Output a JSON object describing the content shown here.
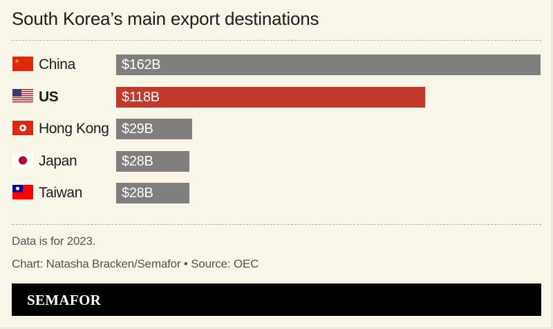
{
  "title": "South Korea’s main export destinations",
  "note": "Data is for 2023.",
  "credit": "Chart: Natasha Bracken/Semafor • Source: OEC",
  "brand": "SEMAFOR",
  "colors": {
    "default_bar": "#7f7f7f",
    "highlight_bar": "#c0392b",
    "background": "#f8f5e9"
  },
  "chart_data": {
    "type": "bar",
    "orientation": "horizontal",
    "title": "South Korea’s main export destinations",
    "categories": [
      "China",
      "US",
      "Hong Kong",
      "Japan",
      "Taiwan"
    ],
    "values": [
      162,
      118,
      29,
      28,
      28
    ],
    "data_labels": [
      "$162B",
      "$118B",
      "$29B",
      "$28B",
      "$28B"
    ],
    "highlight": "US",
    "flags": [
      "china-flag-icon",
      "us-flag-icon",
      "hong-kong-flag-icon",
      "japan-flag-icon",
      "taiwan-flag-icon"
    ],
    "xlim": [
      0,
      162
    ]
  }
}
